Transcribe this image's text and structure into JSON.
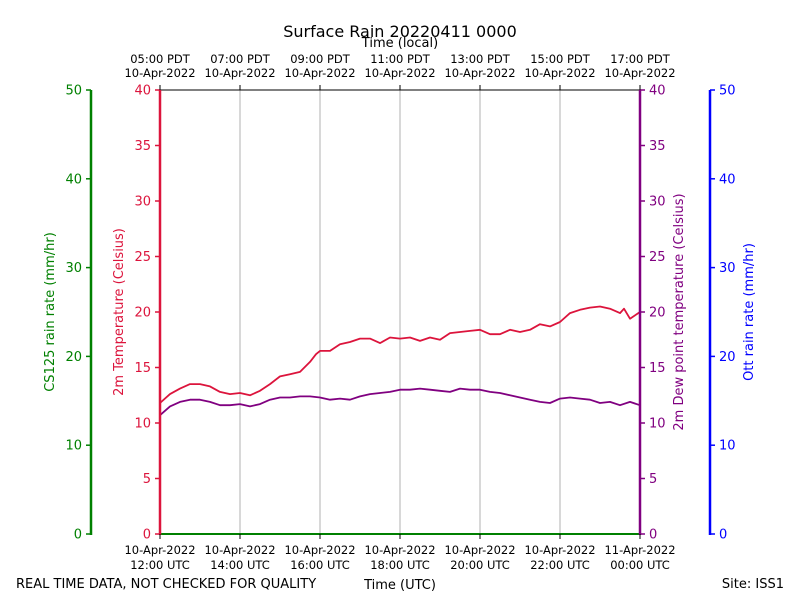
{
  "chart_data": {
    "type": "line",
    "title": "Surface Rain 20220411 0000",
    "top_axis_label": "Time (local)",
    "bottom_axis_label": "Time (UTC)",
    "footer_left": "REAL TIME DATA, NOT CHECKED FOR QUALITY",
    "footer_right": "Site: ISS1",
    "x_range_hours": [
      0,
      12
    ],
    "x_ticks_utc": [
      {
        "h": 0,
        "l1": "10-Apr-2022",
        "l2": "12:00 UTC"
      },
      {
        "h": 2,
        "l1": "10-Apr-2022",
        "l2": "14:00 UTC"
      },
      {
        "h": 4,
        "l1": "10-Apr-2022",
        "l2": "16:00 UTC"
      },
      {
        "h": 6,
        "l1": "10-Apr-2022",
        "l2": "18:00 UTC"
      },
      {
        "h": 8,
        "l1": "10-Apr-2022",
        "l2": "20:00 UTC"
      },
      {
        "h": 10,
        "l1": "10-Apr-2022",
        "l2": "22:00 UTC"
      },
      {
        "h": 12,
        "l1": "11-Apr-2022",
        "l2": "00:00 UTC"
      }
    ],
    "x_ticks_local": [
      {
        "h": 0,
        "l1": "05:00 PDT",
        "l2": "10-Apr-2022"
      },
      {
        "h": 2,
        "l1": "07:00 PDT",
        "l2": "10-Apr-2022"
      },
      {
        "h": 4,
        "l1": "09:00 PDT",
        "l2": "10-Apr-2022"
      },
      {
        "h": 6,
        "l1": "11:00 PDT",
        "l2": "10-Apr-2022"
      },
      {
        "h": 8,
        "l1": "13:00 PDT",
        "l2": "10-Apr-2022"
      },
      {
        "h": 10,
        "l1": "15:00 PDT",
        "l2": "10-Apr-2022"
      },
      {
        "h": 12,
        "l1": "17:00 PDT",
        "l2": "10-Apr-2022"
      }
    ],
    "axes": {
      "cs125": {
        "label": "CS125 rain rate (mm/hr)",
        "range": [
          0,
          50
        ],
        "ticks": [
          0,
          10,
          20,
          30,
          40,
          50
        ],
        "color": "#008000"
      },
      "temp": {
        "label": "2m Temperature (Celsius)",
        "range": [
          0,
          40
        ],
        "ticks": [
          0,
          5,
          10,
          15,
          20,
          25,
          30,
          35,
          40
        ],
        "color": "#dc143c"
      },
      "dew": {
        "label": "2m Dew point temperature (Celsius)",
        "range": [
          0,
          40
        ],
        "ticks": [
          0,
          5,
          10,
          15,
          20,
          25,
          30,
          35,
          40
        ],
        "color": "#800080"
      },
      "ott": {
        "label": "Ott rain rate (mm/hr)",
        "range": [
          0,
          50
        ],
        "ticks": [
          0,
          10,
          20,
          30,
          40,
          50
        ],
        "color": "#0000ff"
      }
    },
    "series": [
      {
        "name": "2m Temperature",
        "axis": "temp",
        "color": "#dc143c",
        "x": [
          0,
          0.25,
          0.5,
          0.75,
          1.0,
          1.25,
          1.5,
          1.75,
          2.0,
          2.25,
          2.5,
          2.75,
          3.0,
          3.25,
          3.5,
          3.75,
          3.9,
          4.0,
          4.25,
          4.5,
          4.75,
          5.0,
          5.25,
          5.5,
          5.75,
          6.0,
          6.25,
          6.5,
          6.75,
          7.0,
          7.25,
          7.5,
          7.75,
          8.0,
          8.25,
          8.5,
          8.75,
          9.0,
          9.25,
          9.5,
          9.75,
          10.0,
          10.25,
          10.5,
          10.75,
          11.0,
          11.25,
          11.5,
          11.6,
          11.75,
          12.0
        ],
        "values": [
          11.8,
          12.6,
          13.1,
          13.5,
          13.5,
          13.3,
          12.8,
          12.6,
          12.7,
          12.5,
          12.9,
          13.5,
          14.2,
          14.4,
          14.6,
          15.5,
          16.2,
          16.5,
          16.5,
          17.1,
          17.3,
          17.6,
          17.6,
          17.2,
          17.7,
          17.6,
          17.7,
          17.4,
          17.7,
          17.5,
          18.1,
          18.2,
          18.3,
          18.4,
          18.0,
          18.0,
          18.4,
          18.2,
          18.4,
          18.9,
          18.7,
          19.1,
          19.9,
          20.2,
          20.4,
          20.5,
          20.3,
          19.9,
          20.3,
          19.4,
          20.0
        ]
      },
      {
        "name": "2m Dew point temperature",
        "axis": "dew",
        "color": "#800080",
        "x": [
          0,
          0.25,
          0.5,
          0.75,
          1.0,
          1.25,
          1.5,
          1.75,
          2.0,
          2.25,
          2.5,
          2.75,
          3.0,
          3.25,
          3.5,
          3.75,
          4.0,
          4.25,
          4.5,
          4.75,
          5.0,
          5.25,
          5.5,
          5.75,
          6.0,
          6.25,
          6.5,
          6.75,
          7.0,
          7.25,
          7.5,
          7.75,
          8.0,
          8.25,
          8.5,
          8.75,
          9.0,
          9.25,
          9.5,
          9.75,
          10.0,
          10.25,
          10.5,
          10.75,
          11.0,
          11.25,
          11.5,
          11.75,
          12.0
        ],
        "values": [
          10.7,
          11.5,
          11.9,
          12.1,
          12.1,
          11.9,
          11.6,
          11.6,
          11.7,
          11.5,
          11.7,
          12.1,
          12.3,
          12.3,
          12.4,
          12.4,
          12.3,
          12.1,
          12.2,
          12.1,
          12.4,
          12.6,
          12.7,
          12.8,
          13.0,
          13.0,
          13.1,
          13.0,
          12.9,
          12.8,
          13.1,
          13.0,
          13.0,
          12.8,
          12.7,
          12.5,
          12.3,
          12.1,
          11.9,
          11.8,
          12.2,
          12.3,
          12.2,
          12.1,
          11.8,
          11.9,
          11.6,
          11.9,
          11.6
        ]
      }
    ]
  }
}
